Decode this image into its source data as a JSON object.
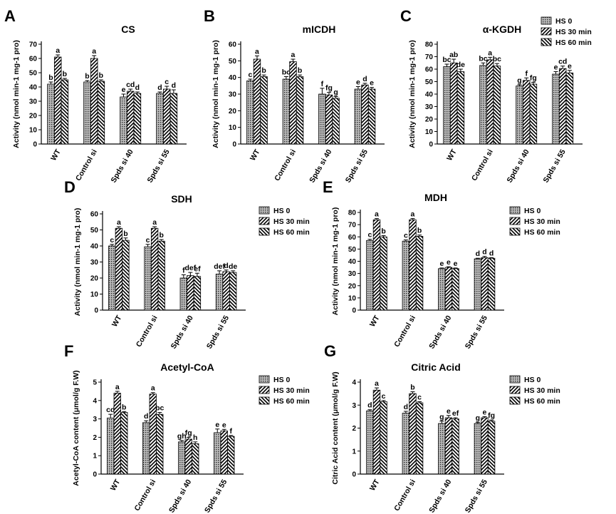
{
  "figure": {
    "legend_labels": [
      "HS 0",
      "HS 30 min",
      "HS 60 min"
    ],
    "series_patterns": [
      "dots",
      "diag-right",
      "diag-left"
    ]
  },
  "chart_data": [
    {
      "panel": "A",
      "type": "bar",
      "title": "CS",
      "ylabel": "Activity (nmol min-1 mg-1 pro)",
      "categories": [
        "WT",
        "Control si",
        "Spds si 40",
        "Spds si 55"
      ],
      "series": [
        {
          "name": "HS 0",
          "values": [
            42,
            43.5,
            33,
            35.5
          ],
          "errors": [
            1.5,
            1,
            2,
            1
          ],
          "letters": [
            "b",
            "b",
            "e",
            "d"
          ]
        },
        {
          "name": "HS 30 min",
          "values": [
            61,
            60,
            37,
            38.5
          ],
          "errors": [
            1.5,
            2,
            1.5,
            2
          ],
          "letters": [
            "a",
            "a",
            "cd",
            "c"
          ]
        },
        {
          "name": "HS 60 min",
          "values": [
            45,
            44,
            35.5,
            35.5
          ],
          "errors": [
            1,
            1,
            1,
            2.5
          ],
          "letters": [
            "b",
            "b",
            "d",
            "d"
          ]
        }
      ],
      "ylim": [
        0,
        70
      ],
      "yticks": [
        0,
        10,
        20,
        30,
        40,
        50,
        60,
        70
      ],
      "legend": false
    },
    {
      "panel": "B",
      "type": "bar",
      "title": "mICDH",
      "ylabel": "Activity (nmol min-1 mg-1 pro)",
      "categories": [
        "WT",
        "Control si",
        "Spds si 40",
        "Spds si 55"
      ],
      "series": [
        {
          "name": "HS 0",
          "values": [
            38,
            39,
            30,
            33
          ],
          "errors": [
            1,
            1.5,
            3.5,
            1.5
          ],
          "letters": [
            "c",
            "bc",
            "f",
            "e"
          ]
        },
        {
          "name": "HS 30 min",
          "values": [
            51,
            49.5,
            29.5,
            35.5
          ],
          "errors": [
            2,
            1.5,
            1.5,
            1
          ],
          "letters": [
            "a",
            "a",
            "fg",
            "d"
          ]
        },
        {
          "name": "HS 60 min",
          "values": [
            40.5,
            40.5,
            27.5,
            33
          ],
          "errors": [
            1,
            1,
            1,
            1
          ],
          "letters": [
            "b",
            "b",
            "g",
            "e"
          ]
        }
      ],
      "ylim": [
        0,
        60
      ],
      "yticks": [
        0,
        10,
        20,
        30,
        40,
        50,
        60
      ],
      "legend": false
    },
    {
      "panel": "C",
      "type": "bar",
      "title": "α-KGDH",
      "ylabel": "Activity (nmol min-1 mg-1 pro)",
      "categories": [
        "WT",
        "Control si",
        "Spds si 40",
        "Spds si 55"
      ],
      "series": [
        {
          "name": "HS 0",
          "values": [
            62,
            63,
            46.5,
            56
          ],
          "errors": [
            2,
            2,
            1,
            2
          ],
          "letters": [
            "bc",
            "bc",
            "g",
            "e"
          ]
        },
        {
          "name": "HS 30 min",
          "values": [
            65,
            67.5,
            51,
            60.5
          ],
          "errors": [
            3,
            2,
            2,
            2
          ],
          "letters": [
            "ab",
            "a",
            "f",
            "cd"
          ]
        },
        {
          "name": "HS 60 min",
          "values": [
            58,
            62.5,
            48,
            57
          ],
          "errors": [
            2,
            2,
            1.5,
            2
          ],
          "letters": [
            "de",
            "bc",
            "fg",
            "e"
          ]
        }
      ],
      "ylim": [
        0,
        80
      ],
      "yticks": [
        0,
        10,
        20,
        30,
        40,
        50,
        60,
        70,
        80
      ],
      "legend": true
    },
    {
      "panel": "D",
      "type": "bar",
      "title": "SDH",
      "ylabel": "Activity (nmol min-1 mg-1 pro)",
      "categories": [
        "WT",
        "Control si",
        "Spds si 40",
        "Spds si 55"
      ],
      "series": [
        {
          "name": "HS 0",
          "values": [
            40,
            39.5,
            20,
            22.5
          ],
          "errors": [
            1,
            1.5,
            2,
            2
          ],
          "letters": [
            "c",
            "c",
            "f",
            "def"
          ]
        },
        {
          "name": "HS 30 min",
          "values": [
            51,
            51,
            21.5,
            24
          ],
          "errors": [
            1,
            1,
            2,
            1
          ],
          "letters": [
            "a",
            "a",
            "def",
            "d"
          ]
        },
        {
          "name": "HS 60 min",
          "values": [
            43.5,
            43,
            21,
            23.5
          ],
          "errors": [
            1.5,
            1,
            2,
            1
          ],
          "letters": [
            "b",
            "b",
            "ef",
            "de"
          ]
        }
      ],
      "ylim": [
        0,
        60
      ],
      "yticks": [
        0,
        10,
        20,
        30,
        40,
        50,
        60
      ],
      "legend": true
    },
    {
      "panel": "E",
      "type": "bar",
      "title": "MDH",
      "ylabel": "Activity (nmol min-1 mg-1 pro)",
      "categories": [
        "WT",
        "Control si",
        "Spds si 40",
        "Spds si 55"
      ],
      "series": [
        {
          "name": "HS 0",
          "values": [
            57,
            56.5,
            34,
            42
          ],
          "errors": [
            1,
            1,
            0.5,
            0.5
          ],
          "letters": [
            "c",
            "c",
            "e",
            "d"
          ]
        },
        {
          "name": "HS 30 min",
          "values": [
            74,
            74,
            35,
            43
          ],
          "errors": [
            1,
            1,
            0.5,
            1
          ],
          "letters": [
            "a",
            "a",
            "e",
            "d"
          ]
        },
        {
          "name": "HS 60 min",
          "values": [
            60,
            60.5,
            34,
            42.5
          ],
          "errors": [
            1,
            1,
            0.5,
            0.5
          ],
          "letters": [
            "b",
            "b",
            "e",
            "d"
          ]
        }
      ],
      "ylim": [
        0,
        80
      ],
      "yticks": [
        0,
        10,
        20,
        30,
        40,
        50,
        60,
        70,
        80
      ],
      "legend": true
    },
    {
      "panel": "F",
      "type": "bar",
      "title": "Acetyl-CoA",
      "ylabel": "Acetyl-CoA content (μmol/g F.W)",
      "categories": [
        "WT",
        "Control si",
        "Spds si 40",
        "Spds si 55"
      ],
      "series": [
        {
          "name": "HS 0",
          "values": [
            3.05,
            2.8,
            1.75,
            2.25
          ],
          "errors": [
            0.2,
            0.1,
            0.08,
            0.2
          ],
          "letters": [
            "cd",
            "d",
            "gh",
            "e"
          ]
        },
        {
          "name": "HS 30 min",
          "values": [
            4.4,
            4.35,
            1.9,
            2.35
          ],
          "errors": [
            0.1,
            0.08,
            0.1,
            0.08
          ],
          "letters": [
            "a",
            "a",
            "fg",
            "e"
          ]
        },
        {
          "name": "HS 60 min",
          "values": [
            3.35,
            3.25,
            1.65,
            2.05
          ],
          "errors": [
            0.05,
            0.1,
            0.1,
            0.05
          ],
          "letters": [
            "b",
            "bc",
            "h",
            "f"
          ]
        }
      ],
      "ylim": [
        0,
        5
      ],
      "yticks": [
        0,
        1,
        2,
        3,
        4,
        5
      ],
      "legend": true
    },
    {
      "panel": "G",
      "type": "bar",
      "title": "Citric Acid",
      "ylabel": "Citric Acid content (μmol/g F.W)",
      "categories": [
        "WT",
        "Control si",
        "Spds si 40",
        "Spds si 55"
      ],
      "series": [
        {
          "name": "HS 0",
          "values": [
            2.75,
            2.65,
            2.2,
            2.2
          ],
          "errors": [
            0.05,
            0.08,
            0.1,
            0.05
          ],
          "letters": [
            "d",
            "d",
            "g",
            "g"
          ]
        },
        {
          "name": "HS 30 min",
          "values": [
            3.65,
            3.5,
            2.45,
            2.45
          ],
          "errors": [
            0.1,
            0.08,
            0.1,
            0.05
          ],
          "letters": [
            "a",
            "b",
            "e",
            "e"
          ]
        },
        {
          "name": "HS 60 min",
          "values": [
            3.15,
            3.1,
            2.4,
            2.3
          ],
          "errors": [
            0.05,
            0.05,
            0.05,
            0.05
          ],
          "letters": [
            "c",
            "c",
            "ef",
            "fg"
          ]
        }
      ],
      "ylim": [
        0,
        4
      ],
      "yticks": [
        0,
        1,
        2,
        3,
        4
      ],
      "legend": true
    }
  ]
}
